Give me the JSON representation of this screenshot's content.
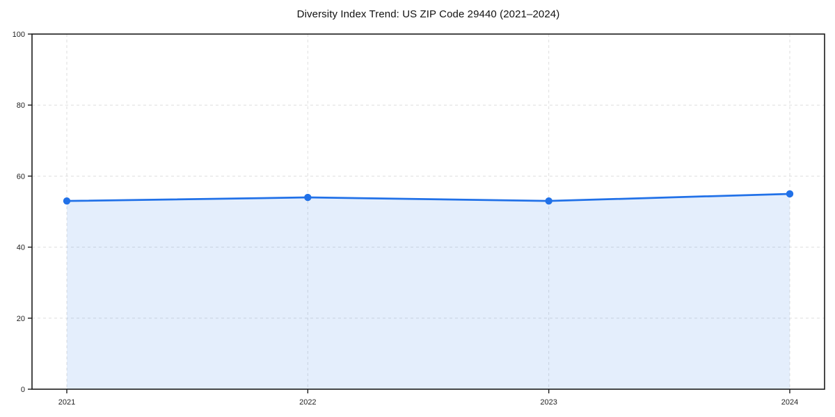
{
  "figure": {
    "title": "Diversity Index Trend: US ZIP Code 29440 (2021–2024)"
  },
  "chart_data": {
    "type": "line",
    "title": "Diversity Index Trend: US ZIP Code 29440 (2021–2024)",
    "x": [
      2021,
      2022,
      2023,
      2024
    ],
    "values": [
      53,
      54,
      53,
      55
    ],
    "series": [
      {
        "name": "Diversity Index",
        "values": [
          53,
          54,
          53,
          55
        ]
      }
    ],
    "xlabel": "",
    "ylabel": "",
    "ylim": [
      0,
      100
    ],
    "yticks": [
      0,
      20,
      40,
      60,
      80,
      100
    ],
    "ytick_labels": [
      "0",
      "20",
      "40",
      "60",
      "80",
      "100"
    ],
    "xtick_labels": [
      "2021",
      "2022",
      "2023",
      "2024"
    ],
    "grid": "dashed",
    "legend": "none",
    "area_fill": true,
    "marker": "circle",
    "style": {
      "line_color": "#2171e8",
      "fill_color": "#2171e8",
      "fill_opacity": 0.12,
      "grid_color": "#dedede",
      "spine_color": "#1a1a1a",
      "text_color": "#222222",
      "background": "#ffffff"
    }
  }
}
